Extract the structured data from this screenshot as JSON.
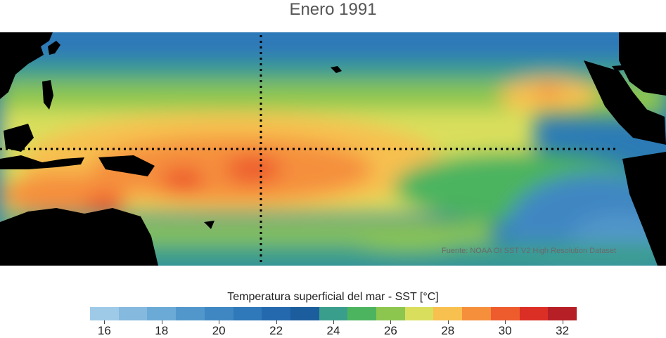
{
  "title": "Enero 1991",
  "source": "Fuente: NOAA OI SST V2 High Resolution Dataset",
  "colorbar": {
    "label": "Temperatura superficial del mar - SST  [°C]",
    "colors": [
      "#9ecae8",
      "#85b9de",
      "#6baad6",
      "#5297cb",
      "#3f87c2",
      "#2f78b9",
      "#2469ae",
      "#1c5d9d",
      "#3a9e8c",
      "#4cb45e",
      "#8cc64f",
      "#d9df5c",
      "#f7c04f",
      "#f58f3c",
      "#ee5b2d",
      "#db2e25",
      "#b61f25"
    ],
    "ticks": [
      "16",
      "18",
      "20",
      "22",
      "24",
      "26",
      "28",
      "30",
      "32"
    ]
  }
}
